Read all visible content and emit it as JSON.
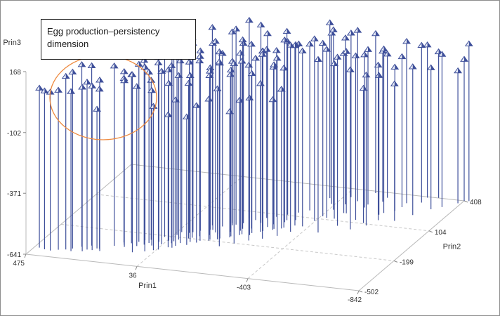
{
  "chart_data": {
    "type": "scatter",
    "subtype": "3d-needle",
    "axes": {
      "x": {
        "label": "Prin1",
        "ticks": [
          475,
          36,
          -403,
          -842
        ]
      },
      "y": {
        "label": "Prin2",
        "ticks": [
          -502,
          -199,
          104,
          408
        ]
      },
      "z": {
        "label": "Prin3",
        "ticks": [
          -641,
          -371,
          -102,
          168
        ]
      }
    },
    "marker": "pyramid",
    "colors": {
      "needle": "#3e4f9a",
      "marker": "#3e4f9a",
      "marker_highlight": "#e8ecf6",
      "axes": "#b9b9b9",
      "grid": "#c8c8c8",
      "annotation": "#ee8a3f"
    },
    "points": [
      [
        455,
        -430,
        60
      ],
      [
        430,
        -440,
        55
      ],
      [
        405,
        -445,
        55
      ],
      [
        380,
        -430,
        60
      ],
      [
        330,
        -430,
        60
      ],
      [
        290,
        -420,
        80
      ],
      [
        260,
        -400,
        80
      ],
      [
        240,
        -380,
        60
      ],
      [
        355,
        -420,
        120
      ],
      [
        335,
        -405,
        135
      ],
      [
        280,
        -400,
        95
      ],
      [
        230,
        -400,
        110
      ],
      [
        310,
        -380,
        160
      ],
      [
        280,
        -360,
        150
      ],
      [
        250,
        -380,
        -30
      ],
      [
        200,
        -340,
        150
      ],
      [
        180,
        -300,
        80
      ],
      [
        170,
        -320,
        120
      ],
      [
        160,
        -340,
        90
      ],
      [
        150,
        -300,
        100
      ],
      [
        130,
        -280,
        140
      ],
      [
        120,
        -320,
        60
      ],
      [
        115,
        -260,
        120
      ],
      [
        100,
        -300,
        170
      ],
      [
        95,
        -250,
        60
      ],
      [
        90,
        -280,
        110
      ],
      [
        80,
        -220,
        150
      ],
      [
        70,
        -300,
        40
      ],
      [
        60,
        -260,
        180
      ],
      [
        50,
        -200,
        90
      ],
      [
        40,
        -280,
        120
      ],
      [
        30,
        -240,
        50
      ],
      [
        25,
        -180,
        170
      ],
      [
        10,
        -260,
        140
      ],
      [
        0,
        -220,
        80
      ],
      [
        -10,
        -150,
        110
      ],
      [
        -20,
        -250,
        160
      ],
      [
        -30,
        -200,
        40
      ],
      [
        -40,
        -120,
        150
      ],
      [
        -50,
        -230,
        90
      ],
      [
        -60,
        -170,
        130
      ],
      [
        -70,
        -100,
        70
      ],
      [
        -80,
        -210,
        170
      ],
      [
        -90,
        -150,
        60
      ],
      [
        -100,
        -60,
        120
      ],
      [
        -110,
        -190,
        100
      ],
      [
        -120,
        -130,
        160
      ],
      [
        -130,
        -40,
        80
      ],
      [
        -140,
        -170,
        130
      ],
      [
        -150,
        -100,
        50
      ],
      [
        -160,
        -10,
        150
      ],
      [
        -170,
        -140,
        90
      ],
      [
        -180,
        -80,
        140
      ],
      [
        -190,
        30,
        70
      ],
      [
        -200,
        -110,
        120
      ],
      [
        -210,
        -50,
        170
      ],
      [
        -220,
        60,
        100
      ],
      [
        -230,
        -90,
        60
      ],
      [
        -240,
        -20,
        130
      ],
      [
        -250,
        80,
        90
      ],
      [
        -260,
        -60,
        150
      ],
      [
        -270,
        10,
        50
      ],
      [
        -280,
        110,
        120
      ],
      [
        -290,
        -30,
        80
      ],
      [
        -300,
        40,
        160
      ],
      [
        -310,
        140,
        100
      ],
      [
        -320,
        -10,
        60
      ],
      [
        -330,
        70,
        130
      ],
      [
        -340,
        170,
        90
      ],
      [
        -350,
        20,
        150
      ],
      [
        60,
        -210,
        200
      ],
      [
        20,
        -150,
        210
      ],
      [
        -20,
        -140,
        190
      ],
      [
        -60,
        -60,
        230
      ],
      [
        -100,
        -120,
        200
      ],
      [
        -140,
        -30,
        220
      ],
      [
        -180,
        -60,
        190
      ],
      [
        -220,
        10,
        230
      ],
      [
        -260,
        -20,
        210
      ],
      [
        -300,
        60,
        190
      ],
      [
        10,
        -240,
        220
      ],
      [
        -40,
        -190,
        240
      ],
      [
        -80,
        -100,
        180
      ],
      [
        -120,
        -20,
        200
      ],
      [
        -160,
        40,
        230
      ],
      [
        5,
        -300,
        -60
      ],
      [
        -50,
        -260,
        -80
      ],
      [
        -110,
        -200,
        -20
      ],
      [
        -170,
        -150,
        -90
      ],
      [
        -230,
        -110,
        -40
      ],
      [
        -290,
        -40,
        -70
      ],
      [
        45,
        -340,
        -10
      ],
      [
        -15,
        -280,
        0
      ],
      [
        -75,
        -230,
        -40
      ],
      [
        -135,
        -180,
        20
      ],
      [
        -195,
        -120,
        -50
      ],
      [
        -255,
        -70,
        10
      ],
      [
        -315,
        -20,
        -30
      ],
      [
        70,
        -360,
        170
      ],
      [
        30,
        -330,
        180
      ],
      [
        -10,
        -300,
        200
      ],
      [
        110,
        -380,
        140
      ],
      [
        -210,
        -200,
        150
      ],
      [
        -170,
        -240,
        170
      ],
      [
        -250,
        -160,
        130
      ],
      [
        -290,
        -130,
        170
      ],
      [
        -330,
        -90,
        140
      ],
      [
        -360,
        -40,
        180
      ],
      [
        -380,
        20,
        130
      ],
      [
        -400,
        80,
        160
      ],
      [
        -410,
        130,
        120
      ],
      [
        -420,
        200,
        150
      ],
      [
        -390,
        250,
        110
      ],
      [
        -360,
        300,
        130
      ],
      [
        -440,
        260,
        90
      ],
      [
        -430,
        330,
        80
      ],
      [
        -470,
        300,
        110
      ],
      [
        -500,
        390,
        60
      ],
      [
        -460,
        120,
        40
      ],
      [
        -480,
        180,
        70
      ],
      [
        -520,
        250,
        30
      ],
      [
        -560,
        320,
        20
      ],
      [
        -600,
        200,
        -30
      ],
      [
        -640,
        250,
        -10
      ],
      [
        -580,
        110,
        -50
      ],
      [
        -620,
        150,
        40
      ],
      [
        -500,
        60,
        100
      ],
      [
        -540,
        130,
        80
      ],
      [
        -460,
        -20,
        120
      ],
      [
        -560,
        40,
        60
      ],
      [
        -600,
        90,
        20
      ],
      [
        -680,
        160,
        -40
      ],
      [
        -720,
        230,
        10
      ],
      [
        -650,
        330,
        70
      ],
      [
        -700,
        400,
        30
      ],
      [
        -760,
        300,
        -20
      ],
      [
        -430,
        120,
        100
      ],
      [
        -470,
        180,
        60
      ],
      [
        -520,
        280,
        40
      ],
      [
        -560,
        360,
        -10
      ],
      [
        -610,
        220,
        80
      ],
      [
        -650,
        290,
        20
      ],
      [
        -700,
        350,
        50
      ],
      [
        -740,
        410,
        0
      ],
      [
        -790,
        330,
        30
      ],
      [
        -830,
        380,
        -60
      ],
      [
        -860,
        410,
        50
      ],
      [
        -842,
        408,
        -20
      ]
    ]
  },
  "annotation": {
    "text": "Egg production–persistency\ndimension"
  }
}
